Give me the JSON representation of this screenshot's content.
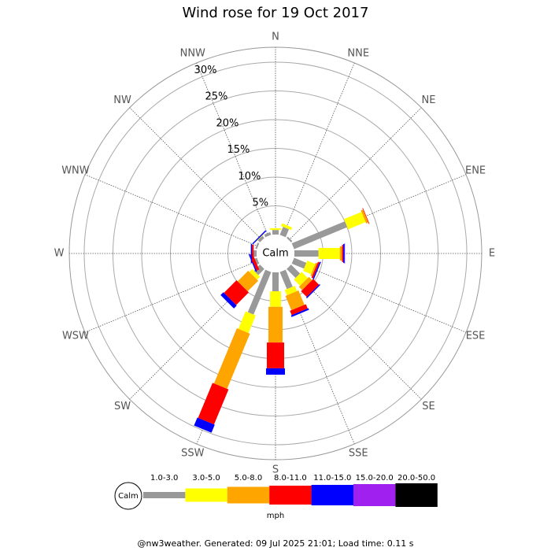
{
  "chart_data": {
    "type": "wind-rose",
    "title": "Wind rose for 19 Oct 2017",
    "directions": [
      "N",
      "NNE",
      "NE",
      "ENE",
      "E",
      "ESE",
      "SE",
      "SSE",
      "S",
      "SSW",
      "SW",
      "WSW",
      "W",
      "WNW",
      "NW",
      "NNW"
    ],
    "calm_label": "Calm",
    "units": "mph",
    "footer": "@nw3weather. Generated: 09 Jul 2025 21:01; Load time: 0.11 s",
    "rlim": [
      0,
      32.6
    ],
    "rticks": [
      {
        "value": 5,
        "label": "5%"
      },
      {
        "value": 10,
        "label": "10%"
      },
      {
        "value": 15,
        "label": "15%"
      },
      {
        "value": 20,
        "label": "20%"
      },
      {
        "value": 25,
        "label": "25%"
      },
      {
        "value": 30,
        "label": "30%"
      }
    ],
    "series": [
      {
        "name": "1.0-3.0",
        "color": "#999999",
        "values": [
          0.8,
          1.5,
          0.3,
          10,
          4.2,
          2.3,
          2.2,
          3.2,
          3.3,
          8,
          1.5,
          0.4,
          0.5,
          0.3,
          0.5,
          0.5
        ]
      },
      {
        "name": "3.0-5.0",
        "color": "#ffff00",
        "values": [
          0.3,
          0.5,
          0,
          3.3,
          3.7,
          1.5,
          1.5,
          1.0,
          2.7,
          3.3,
          0.7,
          0,
          0,
          0,
          0.1,
          0
        ]
      },
      {
        "name": "5.0-8.0",
        "color": "#ffa500",
        "values": [
          0,
          0,
          0,
          0.4,
          0.4,
          0.3,
          0.8,
          2.7,
          6.2,
          10.4,
          2.6,
          0,
          0,
          0,
          0,
          0
        ]
      },
      {
        "name": "8.0-11.0",
        "color": "#ff0000",
        "values": [
          0,
          0,
          0,
          0.1,
          0.2,
          0.3,
          1.4,
          0.8,
          4.5,
          6.6,
          3.1,
          0.5,
          0.3,
          0,
          0,
          0
        ]
      },
      {
        "name": "11.0-15.0",
        "color": "#0000ff",
        "values": [
          0,
          0,
          0,
          0,
          0.2,
          0.2,
          0.2,
          0.3,
          1.1,
          1.5,
          0.7,
          0.2,
          0.2,
          0,
          0.2,
          0
        ]
      },
      {
        "name": "15.0-20.0",
        "color": "#a020f0",
        "values": [
          0,
          0,
          0,
          0,
          0.1,
          0,
          0,
          0,
          0,
          0,
          0,
          0,
          0,
          0,
          0,
          0
        ]
      },
      {
        "name": "20.0-50.0",
        "color": "#000000",
        "values": [
          0,
          0,
          0,
          0,
          0,
          0,
          0,
          0,
          0,
          0,
          0,
          0,
          0,
          0,
          0,
          0
        ]
      }
    ]
  }
}
